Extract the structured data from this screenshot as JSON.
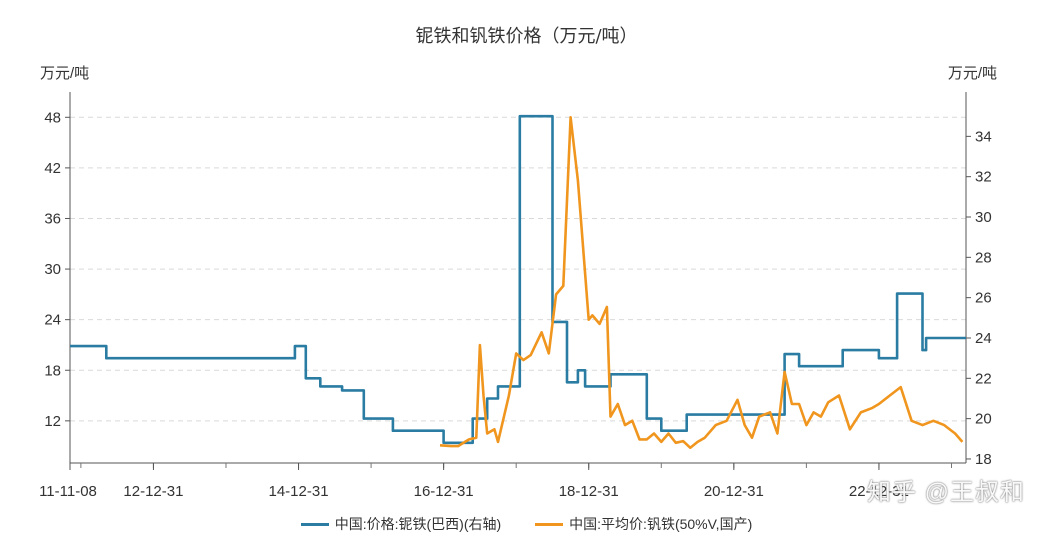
{
  "chart_data": {
    "type": "line",
    "title": "铌铁和钒铁价格（万元/吨）",
    "left_axis_unit": "万元/吨",
    "right_axis_unit": "万元/吨",
    "x_tick_labels": [
      "11-11-08",
      "12-12-31",
      "14-12-31",
      "16-12-31",
      "18-12-31",
      "20-12-31",
      "22-12-31"
    ],
    "x_range": [
      2011.85,
      2024.2
    ],
    "left_axis": {
      "ticks": [
        12,
        18,
        24,
        30,
        36,
        42,
        48
      ],
      "ylim": [
        7.0,
        51.0
      ]
    },
    "right_axis": {
      "ticks": [
        18,
        20,
        22,
        24,
        26,
        28,
        30,
        32,
        34
      ],
      "ylim": [
        17.8,
        36.2
      ]
    },
    "grid": true,
    "legend_position": "bottom",
    "series": [
      {
        "name": "中国:价格:铌铁(巴西)(右轴)",
        "axis": "right",
        "color": "#2a7ca3",
        "x": [
          2011.85,
          2012.35,
          2012.35,
          2014.95,
          2014.95,
          2015.1,
          2015.1,
          2015.3,
          2015.3,
          2015.6,
          2015.6,
          2015.9,
          2015.9,
          2016.3,
          2016.3,
          2016.9,
          2016.9,
          2017.0,
          2017.0,
          2017.4,
          2017.4,
          2017.6,
          2017.6,
          2017.75,
          2017.75,
          2018.05,
          2018.05,
          2018.5,
          2018.5,
          2018.7,
          2018.7,
          2018.85,
          2018.85,
          2018.95,
          2018.95,
          2019.15,
          2019.15,
          2019.3,
          2019.3,
          2019.8,
          2019.8,
          2020.0,
          2020.0,
          2020.35,
          2020.35,
          2021.7,
          2021.7,
          2021.9,
          2021.9,
          2022.5,
          2022.5,
          2022.7,
          2022.7,
          2023.0,
          2023.0,
          2023.25,
          2023.25,
          2023.6,
          2023.6,
          2023.65,
          2023.65,
          2023.8,
          2023.8,
          2023.85,
          2023.85,
          2024.2
        ],
        "values": [
          23.6,
          23.6,
          23.0,
          23.0,
          23.6,
          23.6,
          22.0,
          22.0,
          21.6,
          21.6,
          21.4,
          21.4,
          20.0,
          20.0,
          19.4,
          19.4,
          19.4,
          19.4,
          18.8,
          18.8,
          20.0,
          20.0,
          21.0,
          21.0,
          21.6,
          21.6,
          35.0,
          35.0,
          24.8,
          24.8,
          21.8,
          21.8,
          22.4,
          22.4,
          21.6,
          21.6,
          21.6,
          21.6,
          22.2,
          22.2,
          20.0,
          20.0,
          19.4,
          19.4,
          20.2,
          20.2,
          23.2,
          23.2,
          22.6,
          22.6,
          23.4,
          23.4,
          23.4,
          23.4,
          23.0,
          23.0,
          26.2,
          26.2,
          23.4,
          23.4,
          24.0,
          24.0,
          24.0,
          24.0,
          24.0,
          24.0
        ]
      },
      {
        "name": "中国:平均价:钒铁(50%V,国产)",
        "axis": "left",
        "color": "#f0961e",
        "x": [
          2016.95,
          2017.1,
          2017.2,
          2017.35,
          2017.45,
          2017.5,
          2017.55,
          2017.6,
          2017.7,
          2017.75,
          2017.9,
          2018.0,
          2018.1,
          2018.2,
          2018.35,
          2018.45,
          2018.55,
          2018.65,
          2018.75,
          2018.85,
          2019.0,
          2019.05,
          2019.15,
          2019.25,
          2019.3,
          2019.4,
          2019.5,
          2019.6,
          2019.7,
          2019.8,
          2019.9,
          2020.0,
          2020.1,
          2020.2,
          2020.3,
          2020.4,
          2020.5,
          2020.6,
          2020.75,
          2020.9,
          2021.05,
          2021.15,
          2021.25,
          2021.35,
          2021.5,
          2021.6,
          2021.7,
          2021.8,
          2021.9,
          2022.0,
          2022.1,
          2022.2,
          2022.3,
          2022.45,
          2022.6,
          2022.75,
          2022.9,
          2023.0,
          2023.15,
          2023.3,
          2023.45,
          2023.6,
          2023.75,
          2023.9,
          2024.05,
          2024.15
        ],
        "values": [
          9.1,
          9.0,
          9.0,
          9.8,
          10.0,
          21.0,
          15.0,
          10.5,
          11.0,
          9.5,
          15.0,
          20.0,
          19.2,
          19.8,
          22.5,
          20.0,
          27.0,
          28.0,
          48.0,
          40.5,
          24.0,
          24.5,
          23.5,
          25.5,
          12.5,
          14.0,
          11.5,
          12.0,
          9.8,
          9.8,
          10.5,
          9.5,
          10.5,
          9.4,
          9.6,
          8.8,
          9.5,
          10.0,
          11.5,
          12.0,
          14.5,
          11.5,
          10.0,
          12.5,
          13.0,
          10.5,
          17.8,
          14.0,
          14.0,
          11.5,
          13.0,
          12.5,
          14.2,
          15.0,
          11.0,
          13.0,
          13.5,
          14.0,
          15.0,
          16.0,
          12.0,
          11.5,
          12.0,
          11.5,
          10.5,
          9.5
        ]
      }
    ]
  },
  "watermark": "知乎 @王叔和"
}
